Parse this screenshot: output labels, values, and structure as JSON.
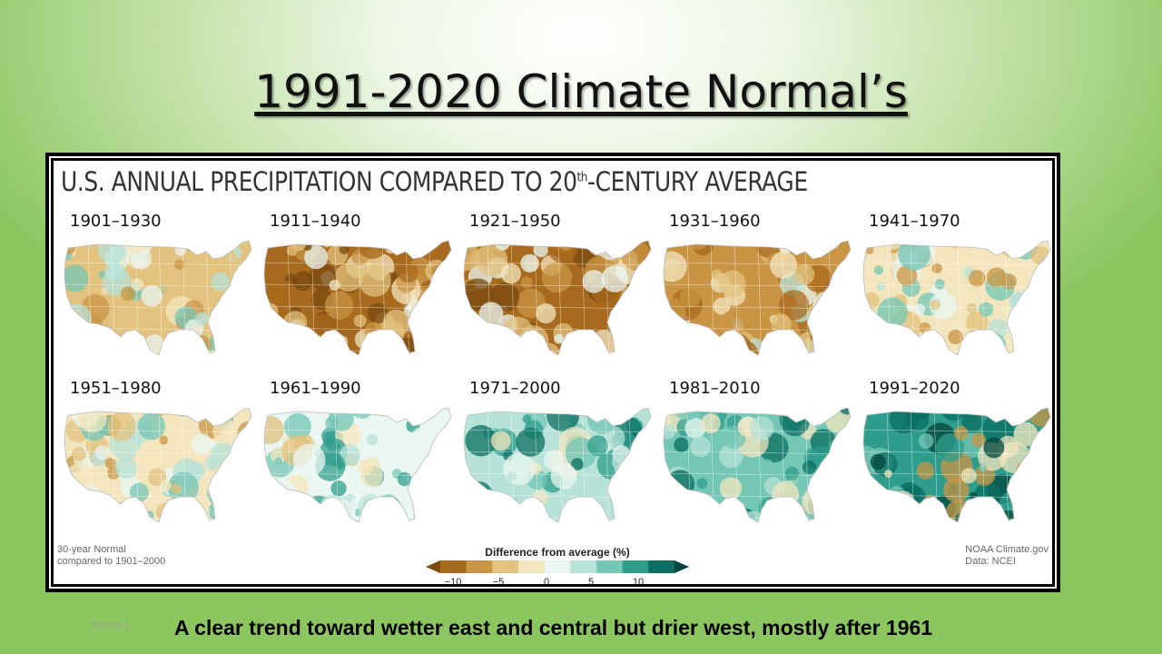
{
  "slide": {
    "title": "1991-2020 Climate Normal’s",
    "footer": "A clear trend toward wetter east and central but drier west, mostly after 1961",
    "date": "5/6/2021"
  },
  "figure": {
    "title": "U.S. ANNUAL PRECIPITATION COMPARED TO 20",
    "title_sup": "th",
    "title_end": "-CENTURY AVERAGE",
    "note_left_1": "30-year Normal",
    "note_left_2": "compared to 1901–2000",
    "credit_1": "NOAA Climate.gov",
    "credit_2": "Data: NCEI",
    "legend_title": "Difference from average (%)",
    "legend_ticks": [
      "−10",
      "−5",
      "0",
      "5",
      "10"
    ],
    "legend_colors": [
      "#7a4a10",
      "#a86a1e",
      "#c99544",
      "#e2c27e",
      "#f3e5bd",
      "#eaf6f2",
      "#b6e2d8",
      "#74c6b5",
      "#2f9d8c",
      "#0a6f62",
      "#03453d"
    ],
    "maps": [
      {
        "label": "1901–1930",
        "tone": "mixed"
      },
      {
        "label": "1911–1940",
        "tone": "dry"
      },
      {
        "label": "1921–1950",
        "tone": "dry"
      },
      {
        "label": "1931–1960",
        "tone": "dry-light"
      },
      {
        "label": "1941–1970",
        "tone": "mixed-sw-dry"
      },
      {
        "label": "1951–1980",
        "tone": "mixed-sw-dry"
      },
      {
        "label": "1961–1990",
        "tone": "slightly-wet"
      },
      {
        "label": "1971–2000",
        "tone": "wet"
      },
      {
        "label": "1981–2010",
        "tone": "wet-east"
      },
      {
        "label": "1991–2020",
        "tone": "very-wet-east"
      }
    ]
  }
}
